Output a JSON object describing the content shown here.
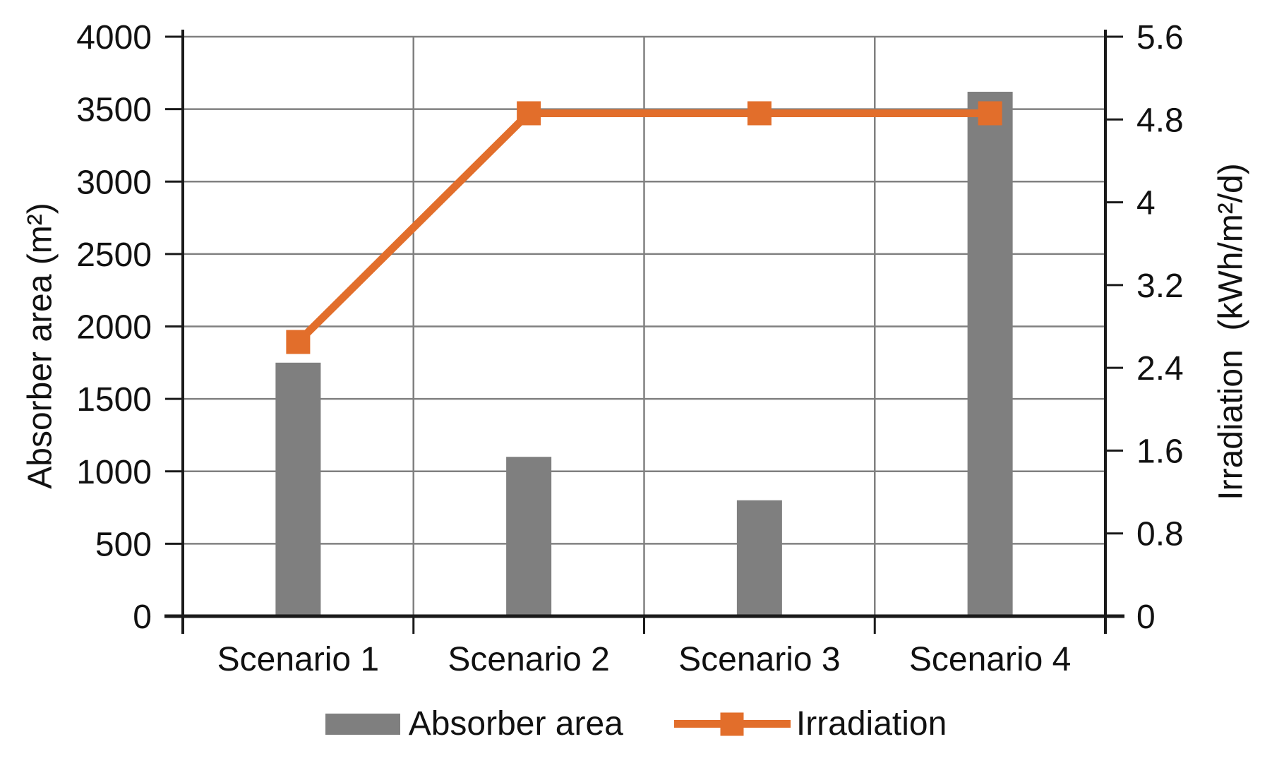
{
  "chart_data": {
    "type": "bar",
    "subtype": "combo-bar-line-dual-axis",
    "title": "",
    "categories": [
      "Scenario 1",
      "Scenario 2",
      "Scenario 3",
      "Scenario 4"
    ],
    "series": [
      {
        "name": "Absorber area",
        "type": "bar",
        "axis": "left",
        "values": [
          1750,
          1100,
          800,
          3620
        ],
        "color": "#7F7F7F"
      },
      {
        "name": "Irradiation",
        "type": "line",
        "axis": "right",
        "values": [
          2.65,
          4.86,
          4.86,
          4.86
        ],
        "color": "#E26E2B",
        "marker": "square"
      }
    ],
    "left_axis": {
      "title": "Absorber area (m²)",
      "min": 0,
      "max": 4000,
      "tick_step": 500,
      "tick_labels": [
        "0",
        "500",
        "1000",
        "1500",
        "2000",
        "2500",
        "3000",
        "3500",
        "4000"
      ]
    },
    "right_axis": {
      "title": "Irradiation  (kWh/m²/d)",
      "min": 0,
      "max": 5.6,
      "tick_step": 0.8,
      "tick_labels": [
        "0",
        "0.8",
        "1.6",
        "2.4",
        "3.2",
        "4",
        "4.8",
        "5.6"
      ]
    },
    "legend": {
      "position": "bottom",
      "entries": [
        "Absorber area",
        "Irradiation"
      ]
    },
    "grid": true,
    "style": {
      "background": "#FFFFFF",
      "grid_color": "#808080",
      "axis_color": "#1A1A1A",
      "text_color": "#111111"
    }
  }
}
